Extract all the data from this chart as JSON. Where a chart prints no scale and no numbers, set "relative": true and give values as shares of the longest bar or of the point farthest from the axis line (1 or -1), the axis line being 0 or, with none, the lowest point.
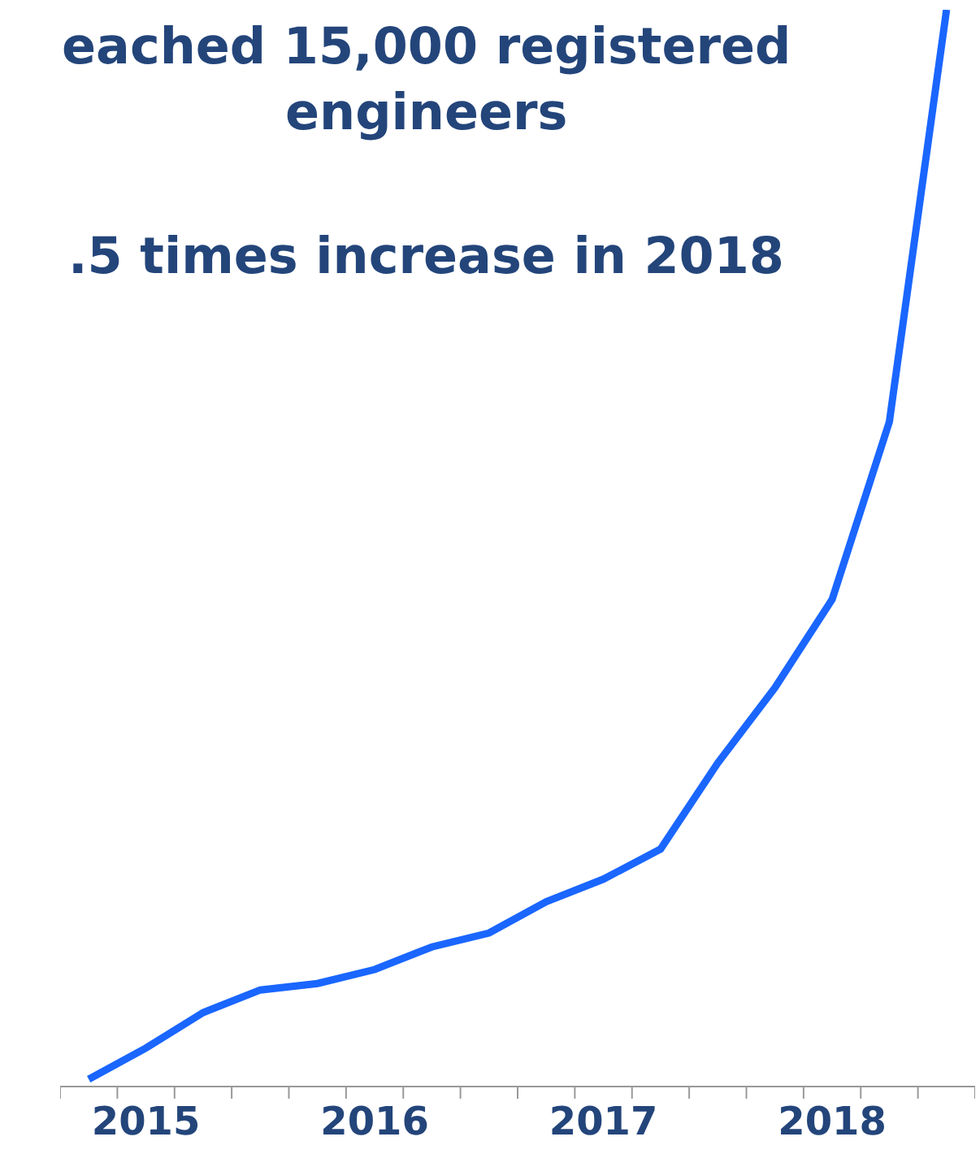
{
  "chart_data": {
    "type": "line",
    "title": "eached 15,000 registered\nengineers",
    "subtitle": ".5 times increase in 2018",
    "relative": true,
    "categories": [
      null,
      "2015",
      null,
      null,
      null,
      "2016",
      null,
      null,
      null,
      "2017",
      null,
      null,
      null,
      "2018",
      null,
      null
    ],
    "series": [
      {
        "color": "#1a66ff",
        "values": [
          0.006,
          0.035,
          0.068,
          0.089,
          0.095,
          0.108,
          0.129,
          0.142,
          0.171,
          0.192,
          0.22,
          0.3,
          0.37,
          0.452,
          0.617,
          1.0
        ]
      }
    ],
    "marker": "none",
    "line_style": "solid"
  }
}
